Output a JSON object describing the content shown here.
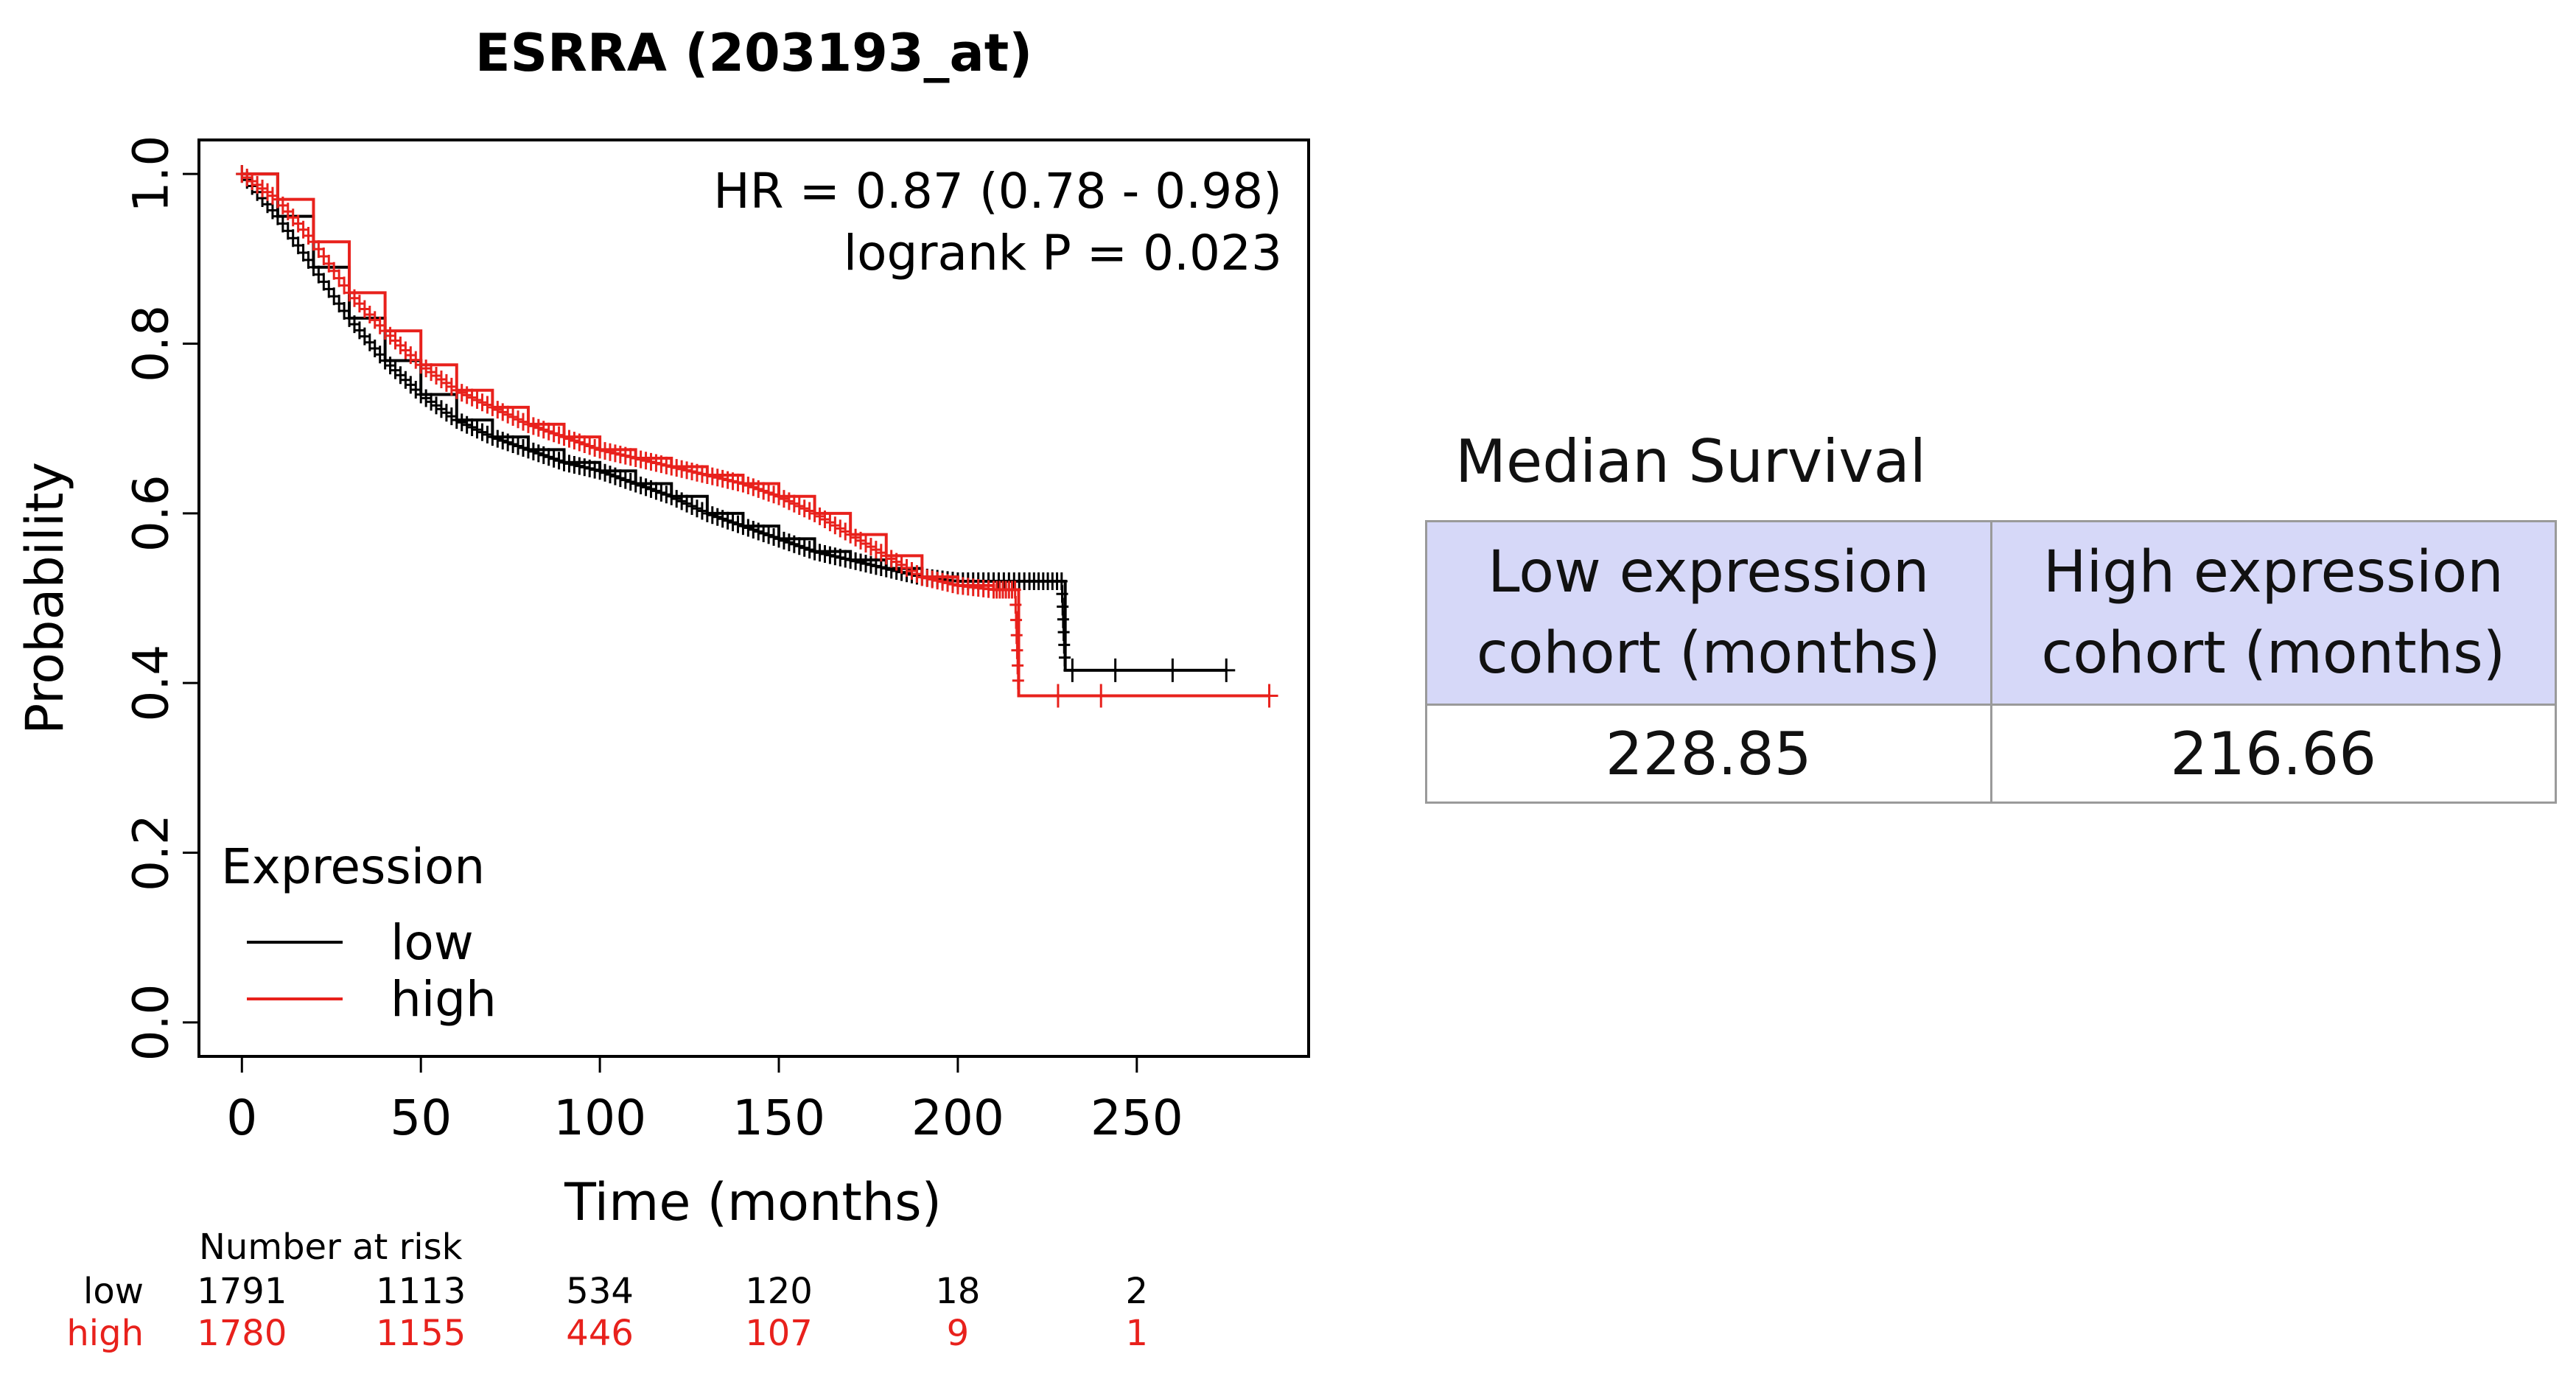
{
  "chart_data": {
    "type": "line",
    "title": "ESRRA (203193_at)",
    "xlabel": "Time (months)",
    "ylabel": "Probability",
    "xlim": [
      -12,
      298
    ],
    "ylim": [
      -0.04,
      1.04
    ],
    "xticks": [
      0,
      50,
      100,
      150,
      200,
      250
    ],
    "yticks": [
      0.0,
      0.2,
      0.4,
      0.6,
      0.8,
      1.0
    ],
    "xtick_labels": [
      "0",
      "50",
      "100",
      "150",
      "200",
      "250"
    ],
    "ytick_labels": [
      "0.0",
      "0.2",
      "0.4",
      "0.6",
      "0.8",
      "1.0"
    ],
    "annotations": [
      "HR = 0.87 (0.78 - 0.98)",
      "logrank P = 0.023"
    ],
    "legend": {
      "title": "Expression",
      "position": "bottom-left"
    },
    "series": [
      {
        "name": "low",
        "color": "#000000",
        "x": [
          0,
          10,
          20,
          30,
          40,
          50,
          60,
          70,
          80,
          90,
          100,
          110,
          120,
          130,
          140,
          150,
          160,
          170,
          180,
          190,
          200,
          210,
          220,
          229,
          230,
          275
        ],
        "y": [
          1.0,
          0.95,
          0.89,
          0.83,
          0.78,
          0.74,
          0.71,
          0.69,
          0.675,
          0.66,
          0.65,
          0.635,
          0.62,
          0.6,
          0.585,
          0.57,
          0.555,
          0.545,
          0.535,
          0.525,
          0.52,
          0.52,
          0.52,
          0.52,
          0.415,
          0.415
        ],
        "censor_x": [
          232,
          244,
          260,
          275
        ]
      },
      {
        "name": "high",
        "color": "#e8211c",
        "x": [
          0,
          10,
          20,
          30,
          40,
          50,
          60,
          70,
          80,
          90,
          100,
          110,
          120,
          130,
          140,
          150,
          160,
          170,
          180,
          190,
          200,
          210,
          216,
          217,
          287
        ],
        "y": [
          1.0,
          0.97,
          0.92,
          0.86,
          0.815,
          0.775,
          0.745,
          0.725,
          0.705,
          0.69,
          0.675,
          0.665,
          0.655,
          0.645,
          0.635,
          0.62,
          0.6,
          0.575,
          0.55,
          0.525,
          0.515,
          0.51,
          0.51,
          0.385,
          0.385
        ],
        "censor_x": [
          228,
          240,
          287
        ]
      }
    ],
    "risk_table": {
      "header": "Number at risk",
      "rows": [
        {
          "label": "low",
          "color": "#000000",
          "values": [
            "1791",
            "1113",
            "534",
            "120",
            "18",
            "2"
          ]
        },
        {
          "label": "high",
          "color": "#e8211c",
          "values": [
            "1780",
            "1155",
            "446",
            "107",
            "9",
            "1"
          ]
        }
      ]
    }
  },
  "median_table": {
    "title": "Median Survival",
    "header_bg": "#d6d8f8",
    "headers": [
      [
        "Low expression",
        "cohort (months)"
      ],
      [
        "High expression",
        "cohort (months)"
      ]
    ],
    "values": [
      "228.85",
      "216.66"
    ]
  }
}
